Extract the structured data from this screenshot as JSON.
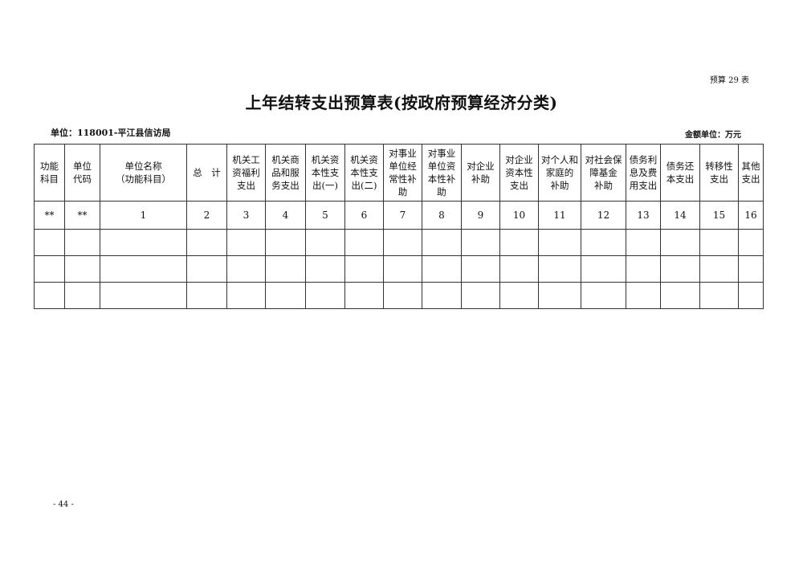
{
  "form_number": "预算 29 表",
  "title": "上年结转支出预算表(按政府预算经济分类)",
  "unit": "单位：118001-平江县信访局",
  "money_unit": "金额单位：万元",
  "table": {
    "headers": [
      "功能\n科目",
      "单位\n代码",
      "单位名称\n（功能科目）",
      "总　计",
      "机关工\n资福利\n支出",
      "机关商\n品和服\n务支出",
      "机关资\n本性支\n出(一)",
      "机关资\n本性支\n出(二)",
      "对事业\n单位经\n常性补\n助",
      "对事业\n单位资\n本性补\n助",
      "对企业\n补助",
      "对企业\n资本性\n支出",
      "对个人和\n家庭的\n补助",
      "对社会保\n障基金\n补助",
      "债务利\n息及费\n用支出",
      "债务还\n本支出",
      "转移性\n支出",
      "其他\n支出"
    ],
    "index_row": [
      "**",
      "**",
      "1",
      "2",
      "3",
      "4",
      "5",
      "6",
      "7",
      "8",
      "9",
      "10",
      "11",
      "12",
      "13",
      "14",
      "15",
      "16"
    ],
    "rows": [
      [
        "",
        "",
        "",
        "",
        "",
        "",
        "",
        "",
        "",
        "",
        "",
        "",
        "",
        "",
        "",
        "",
        "",
        ""
      ],
      [
        "",
        "",
        "",
        "",
        "",
        "",
        "",
        "",
        "",
        "",
        "",
        "",
        "",
        "",
        "",
        "",
        "",
        ""
      ],
      [
        "",
        "",
        "",
        "",
        "",
        "",
        "",
        "",
        "",
        "",
        "",
        "",
        "",
        "",
        "",
        "",
        "",
        ""
      ]
    ]
  },
  "page_number": "- 44 -"
}
